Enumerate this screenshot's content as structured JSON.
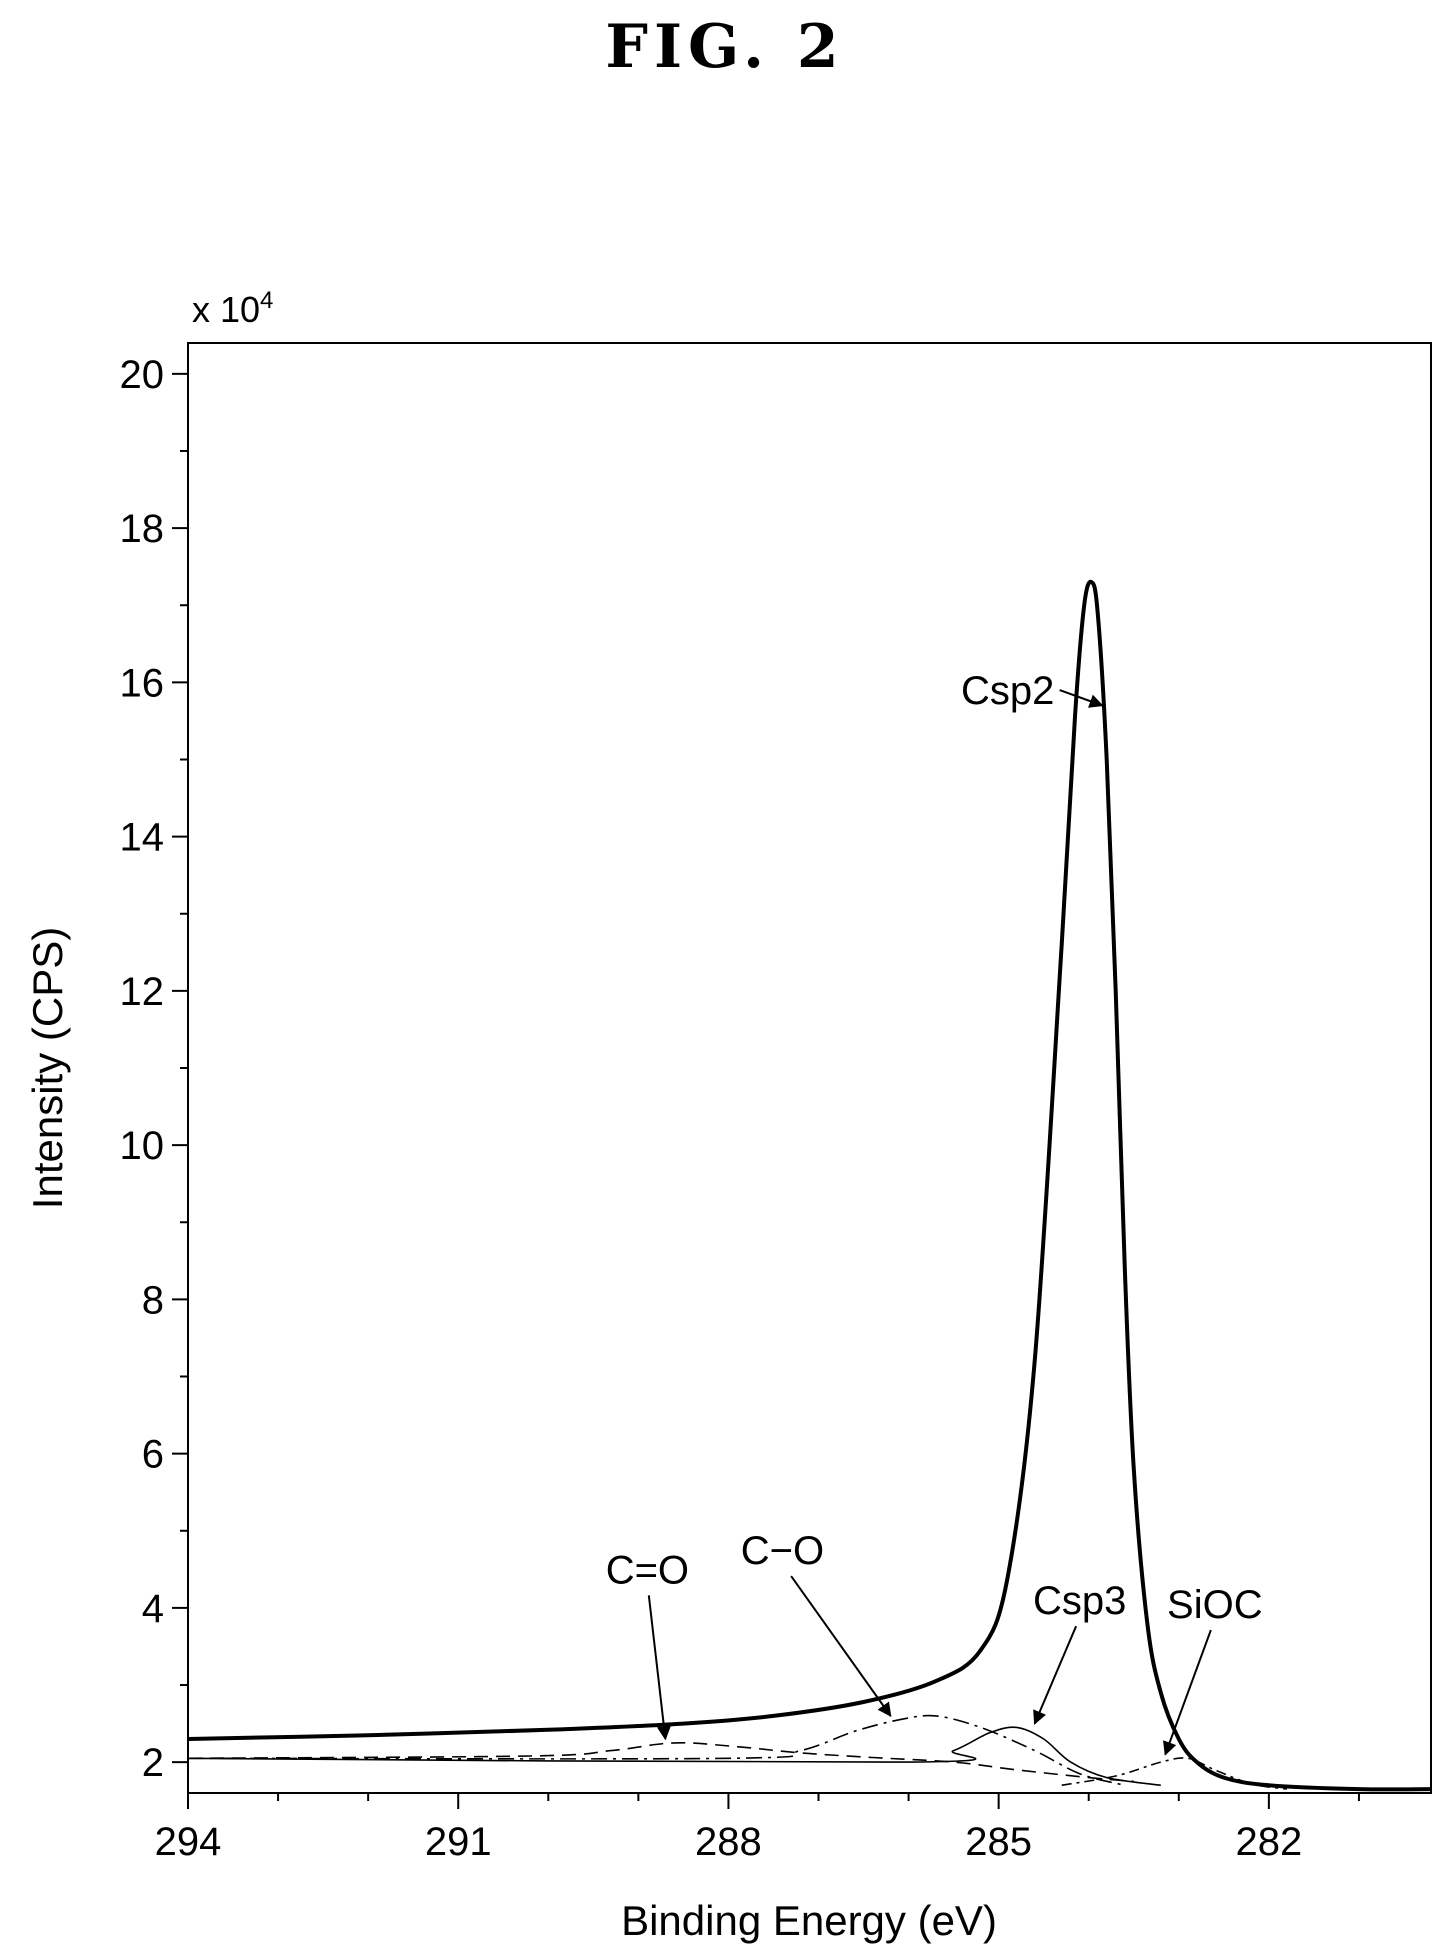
{
  "figure_label": "FIG. 2",
  "chart_data": {
    "type": "line",
    "title": "",
    "xlabel": "Binding Energy (eV)",
    "ylabel": "Intensity (CPS)",
    "y_multiplier_label": "x 10",
    "y_multiplier_exponent": "4",
    "x_reversed": true,
    "xlim": [
      294,
      280.2
    ],
    "ylim": [
      1.6,
      20.4
    ],
    "x_ticks": [
      294,
      291,
      288,
      285,
      282
    ],
    "x_tick_labels": [
      "294",
      "291",
      "288",
      "285",
      "282"
    ],
    "y_ticks": [
      2,
      4,
      6,
      8,
      10,
      12,
      14,
      16,
      18,
      20
    ],
    "y_tick_labels": [
      "2",
      "4",
      "6",
      "8",
      "10",
      "12",
      "14",
      "16",
      "18",
      "20"
    ],
    "grid": false,
    "series": [
      {
        "name": "",
        "style": "solid-thick",
        "x": [
          294,
          292,
          290,
          288.5,
          287.5,
          286.5,
          285.7,
          285.2,
          284.9,
          284.6,
          284.3,
          284.15,
          284.05,
          283.97,
          283.9,
          283.8,
          283.7,
          283.6,
          283.5,
          283.35,
          283.2,
          283.0,
          282.8,
          282.5,
          282.0,
          281.0,
          280.2
        ],
        "y": [
          2.3,
          2.35,
          2.42,
          2.5,
          2.6,
          2.78,
          3.05,
          3.45,
          4.4,
          7.2,
          12.6,
          15.6,
          17.0,
          17.3,
          16.9,
          15.0,
          12.0,
          8.4,
          5.8,
          3.8,
          2.9,
          2.3,
          2.0,
          1.8,
          1.7,
          1.65,
          1.65
        ]
      },
      {
        "name": "",
        "style": "dashed",
        "x": [
          294,
          290.2,
          289.3,
          288.6,
          287.9,
          287.2,
          286.4,
          285.5,
          284.8,
          284.0,
          283.5
        ],
        "y": [
          2.05,
          2.08,
          2.15,
          2.25,
          2.2,
          2.12,
          2.06,
          2.0,
          1.9,
          1.8,
          1.75
        ]
      },
      {
        "name": "",
        "style": "dash-dot",
        "x": [
          294,
          288.0,
          287.2,
          286.6,
          286.1,
          285.7,
          285.2,
          284.6,
          284.1,
          283.6
        ],
        "y": [
          2.05,
          2.05,
          2.15,
          2.4,
          2.55,
          2.6,
          2.45,
          2.15,
          1.85,
          1.7
        ]
      },
      {
        "name": "",
        "style": "solid-thin",
        "x": [
          294,
          286.0,
          285.5,
          285.1,
          284.8,
          284.5,
          284.2,
          283.8,
          283.2
        ],
        "y": [
          2.05,
          2.0,
          2.15,
          2.38,
          2.45,
          2.3,
          2.0,
          1.8,
          1.7
        ]
      },
      {
        "name": "",
        "style": "dash-dot-thin",
        "x": [
          284.3,
          283.7,
          283.2,
          282.9,
          282.6,
          282.2,
          281.8
        ],
        "y": [
          1.7,
          1.82,
          2.0,
          2.05,
          1.9,
          1.72,
          1.65
        ]
      }
    ],
    "annotations": [
      {
        "text": "Csp2",
        "label_x": 284.9,
        "label_y": 15.9,
        "arrow_x": 283.85,
        "arrow_y": 15.7
      },
      {
        "text": "C=O",
        "label_x": 288.9,
        "label_y": 4.5,
        "arrow_x": 288.7,
        "arrow_y": 2.3
      },
      {
        "text": "C−O",
        "label_x": 287.4,
        "label_y": 4.75,
        "arrow_x": 286.2,
        "arrow_y": 2.6
      },
      {
        "text": "Csp3",
        "label_x": 284.1,
        "label_y": 4.1,
        "arrow_x": 284.6,
        "arrow_y": 2.5
      },
      {
        "text": "SiOC",
        "label_x": 282.6,
        "label_y": 4.05,
        "arrow_x": 283.15,
        "arrow_y": 2.1
      }
    ]
  }
}
